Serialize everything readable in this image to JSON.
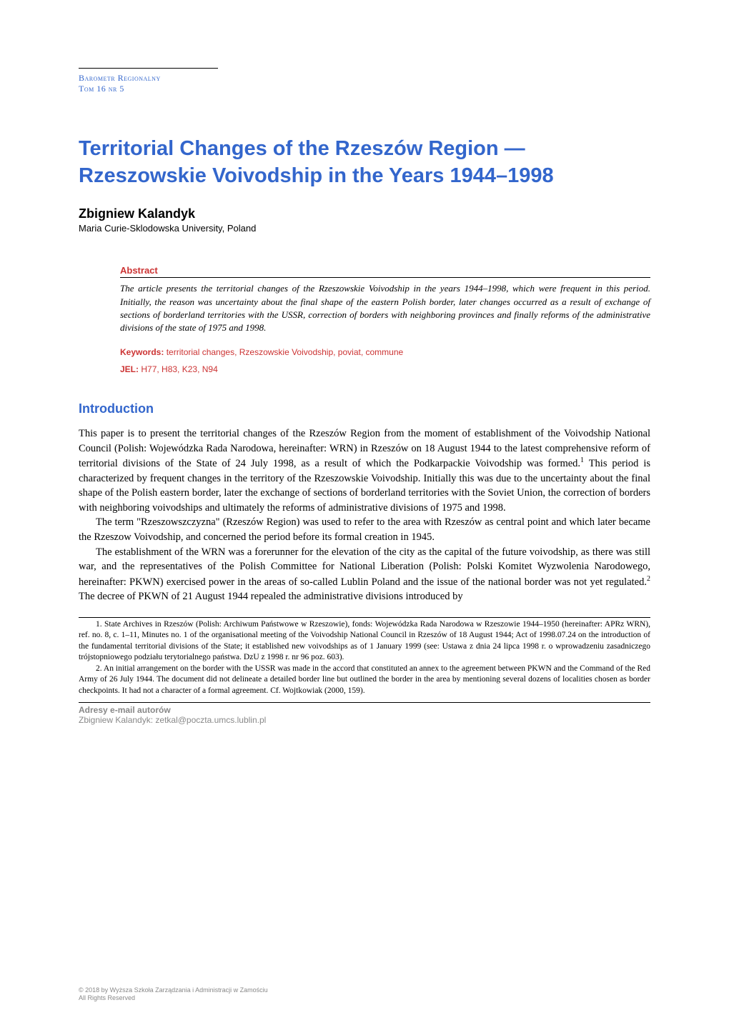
{
  "journal": {
    "name": "Barometr Regionalny",
    "issue": "Tom 16 nr 5"
  },
  "title": "Territorial Changes of the Rzeszów Region — Rzeszowskie Voivodship in the Years 1944–1998",
  "author": {
    "name": "Zbigniew Kalandyk",
    "affiliation": "Maria Curie-Sklodowska University, Poland"
  },
  "abstract": {
    "label": "Abstract",
    "text": "The article presents the territorial changes of the Rzeszowskie Voivodship in the years 1944–1998, which were frequent in this period. Initially, the reason was uncertainty about the final shape of the eastern Polish border, later changes occurred as a result of exchange of sections of borderland territories with the USSR, correction of borders with neighboring provinces and finally reforms of the administrative divisions of the state of 1975 and 1998."
  },
  "keywords": {
    "label": "Keywords:",
    "text": " territorial changes, Rzeszowskie Voivodship, poviat, commune"
  },
  "jel": {
    "label": "JEL:",
    "text": " H77, H83, K23, N94"
  },
  "section": {
    "heading": "Introduction"
  },
  "body": {
    "p1a": "This paper is to present the territorial changes of the Rzeszów Region from the moment of establishment of the Voivodship National Council (Polish: Wojewódzka Rada Narodowa, hereinafter: WRN) in Rzeszów on 18 August 1944 to the latest comprehensive reform of territorial divisions of the State of 24 July 1998, as a result of which the Podkarpackie Voivodship was formed.",
    "p1b": " This period is characterized by frequent changes in the territory of the Rzeszowskie Voivodship. Initially this was due to the uncertainty about the final shape of the Polish eastern border, later the exchange of sections of borderland territories with the Soviet Union, the correction of borders with neighboring voivodships and ultimately the reforms of administrative divisions of 1975 and 1998.",
    "p2": "The term \"Rzeszowszczyzna\" (Rzeszów Region) was used to refer to the area with Rzeszów as central point and which later became the Rzeszow Voivodship, and concerned the period before its formal creation in 1945.",
    "p3a": "The establishment of the WRN was a forerunner for the elevation of the city as the capital of the future voivodship, as there was still war, and the representatives of the Polish Committee for National Liberation (Polish: Polski Komitet Wyzwolenia Narodowego, hereinafter: PKWN) exercised power in the areas of so-called Lublin Poland and the issue of the national border was not yet regulated.",
    "p3b": " The decree of PKWN of 21 August 1944 repealed the administrative divisions introduced by"
  },
  "footnotes": {
    "f1": "1. State Archives in Rzeszów (Polish: Archiwum Państwowe w Rzeszowie), fonds: Wojewódzka Rada Narodowa w Rzeszowie 1944–1950 (hereinafter: APRz WRN), ref. no. 8, c. 1–11, Minutes no. 1 of the organisational meeting of the Voivodship National Council in Rzeszów of 18 August 1944; Act of 1998.07.24 on the introduction of the fundamental territorial divisions of the State; it established new voivodships as of 1 January 1999 (see: Ustawa z dnia 24 lipca 1998 r. o wprowadzeniu zasadniczego trójstopniowego podziału terytorialnego państwa. DzU z 1998 r. nr 96 poz. 603).",
    "f2": "2. An initial arrangement on the border with the USSR was made in the accord that constituted an annex to the agreement between PKWN and the Command of the Red Army of 26 July 1944. The document did not delineate a detailed border line but outlined the border in the area by mentioning several dozens of localities chosen as border checkpoints. It had not a character of a formal agreement. Cf. Wojtkowiak (2000, 159)."
  },
  "email": {
    "label": "Adresy e-mail autorów",
    "line": "Zbigniew Kalandyk: zetkal@poczta.umcs.lublin.pl"
  },
  "copyright": {
    "line1": "© 2018 by Wyższa Szkoła Zarządzania i Administracji w Zamościu",
    "line2": "All Rights Reserved"
  },
  "colors": {
    "blue": "#3366cc",
    "red": "#cc3333",
    "gray": "#888888",
    "text": "#000000",
    "background": "#ffffff"
  }
}
